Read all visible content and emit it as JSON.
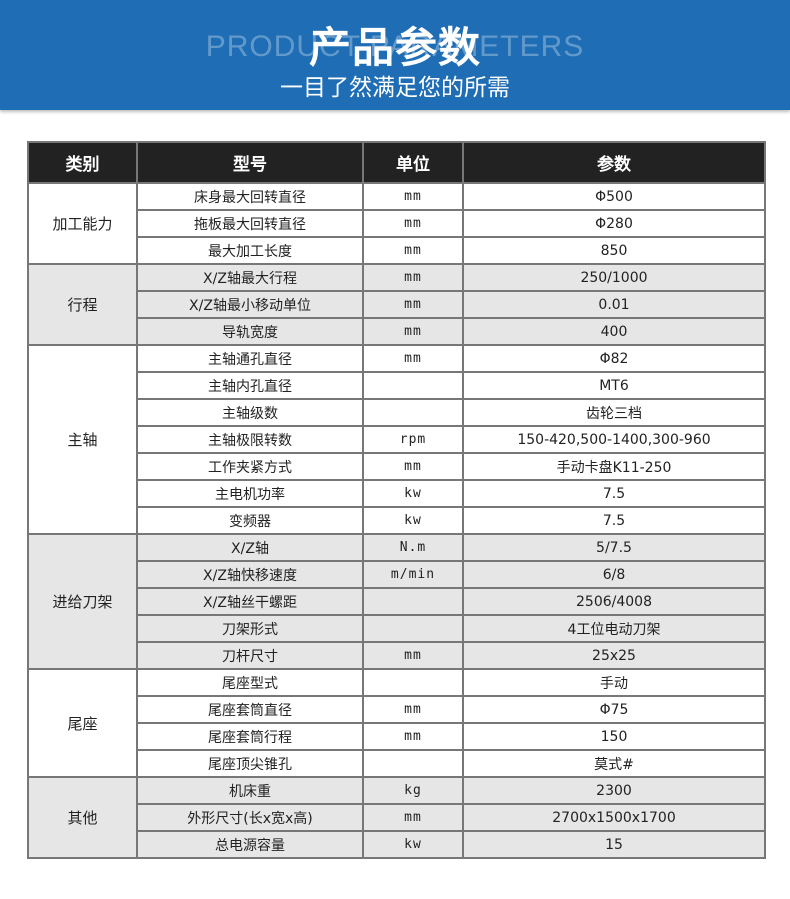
{
  "banner": {
    "title": "产品参数",
    "watermark": "PRODUCT PARAMETERS",
    "subtitle": "一目了然满足您的所需",
    "color": "#1f6db5"
  },
  "table": {
    "headers": [
      "类别",
      "型号",
      "单位",
      "参数"
    ],
    "groups": [
      {
        "category": "加工能力",
        "rows": [
          [
            "床身最大回转直径",
            "mm",
            "Φ500"
          ],
          [
            "拖板最大回转直径",
            "mm",
            "Φ280"
          ],
          [
            "最大加工长度",
            "mm",
            "850"
          ]
        ]
      },
      {
        "category": "行程",
        "rows": [
          [
            "X/Z轴最大行程",
            "mm",
            "250/1000"
          ],
          [
            "X/Z轴最小移动单位",
            "mm",
            "0.01"
          ],
          [
            "导轨宽度",
            "mm",
            "400"
          ]
        ]
      },
      {
        "category": "主轴",
        "rows": [
          [
            "主轴通孔直径",
            "mm",
            "Φ82"
          ],
          [
            "主轴内孔直径",
            "",
            "MT6"
          ],
          [
            "主轴级数",
            "",
            "齿轮三档"
          ],
          [
            "主轴极限转数",
            "rpm",
            "150-420,500-1400,300-960"
          ],
          [
            "工作夹紧方式",
            "mm",
            "手动卡盘K11-250"
          ],
          [
            "主电机功率",
            "kw",
            "7.5"
          ],
          [
            "变频器",
            "kw",
            "7.5"
          ]
        ]
      },
      {
        "category": "进给刀架",
        "rows": [
          [
            "X/Z轴",
            "N.m",
            "5/7.5"
          ],
          [
            "X/Z轴快移速度",
            "m/min",
            "6/8"
          ],
          [
            "X/Z轴丝干螺距",
            "",
            "2506/4008"
          ],
          [
            "刀架形式",
            "",
            "4工位电动刀架"
          ],
          [
            "刀杆尺寸",
            "mm",
            "25x25"
          ]
        ]
      },
      {
        "category": "尾座",
        "rows": [
          [
            "尾座型式",
            "",
            "手动"
          ],
          [
            "尾座套筒直径",
            "mm",
            "Φ75"
          ],
          [
            "尾座套筒行程",
            "mm",
            "150"
          ],
          [
            "尾座顶尖锥孔",
            "",
            "莫式#"
          ]
        ]
      },
      {
        "category": "其他",
        "rows": [
          [
            "机床重",
            "kg",
            "2300"
          ],
          [
            "外形尺寸(长x宽x高)",
            "mm",
            "2700x1500x1700"
          ],
          [
            "总电源容量",
            "kw",
            "15"
          ]
        ]
      }
    ]
  }
}
